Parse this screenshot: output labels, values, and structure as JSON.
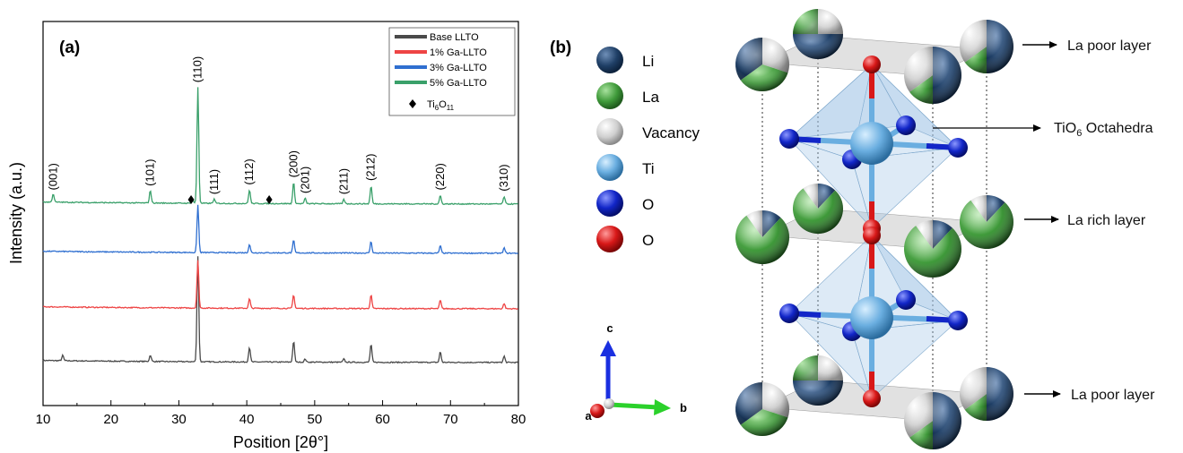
{
  "chart_data": {
    "type": "line",
    "panel_label": "(a)",
    "xlabel": "Position [2θ°]",
    "ylabel": "Intensity (a.u.)",
    "xlim": [
      10,
      80
    ],
    "xticks": [
      10,
      20,
      30,
      40,
      50,
      60,
      70,
      80
    ],
    "legend": {
      "placement": "top-right",
      "marker_label_main": "Ti",
      "marker_label_sub1": "6",
      "marker_label_mid": "O",
      "marker_label_sub2": "11"
    },
    "series": [
      {
        "name": "Base LLTO",
        "color": "#4a4a4a",
        "offset": 0,
        "peaks": [
          [
            12.9,
            0.05
          ],
          [
            25.8,
            0.06
          ],
          [
            32.8,
            1.0
          ],
          [
            40.4,
            0.14
          ],
          [
            46.9,
            0.2
          ],
          [
            48.6,
            0.03
          ],
          [
            54.3,
            0.03
          ],
          [
            58.3,
            0.17
          ],
          [
            68.5,
            0.1
          ],
          [
            77.9,
            0.06
          ]
        ]
      },
      {
        "name": "1% Ga-LLTO",
        "color": "#ee4444",
        "offset": 1,
        "peaks": [
          [
            32.8,
            0.45
          ],
          [
            40.4,
            0.09
          ],
          [
            46.9,
            0.13
          ],
          [
            58.3,
            0.13
          ],
          [
            68.5,
            0.08
          ],
          [
            77.9,
            0.05
          ]
        ]
      },
      {
        "name": "3% Ga-LLTO",
        "color": "#2f6fd0",
        "offset": 2,
        "peaks": [
          [
            32.8,
            0.45
          ],
          [
            40.4,
            0.08
          ],
          [
            46.9,
            0.12
          ],
          [
            58.3,
            0.11
          ],
          [
            68.5,
            0.07
          ],
          [
            77.9,
            0.05
          ]
        ]
      },
      {
        "name": "5% Ga-LLTO",
        "color": "#3aa06a",
        "offset": 3,
        "peaks": [
          [
            11.5,
            0.08
          ],
          [
            25.8,
            0.12
          ],
          [
            32.0,
            0.04
          ],
          [
            32.8,
            1.1
          ],
          [
            35.2,
            0.04
          ],
          [
            40.4,
            0.13
          ],
          [
            46.9,
            0.2
          ],
          [
            48.6,
            0.05
          ],
          [
            54.3,
            0.04
          ],
          [
            58.3,
            0.17
          ],
          [
            68.5,
            0.08
          ],
          [
            77.9,
            0.07
          ]
        ]
      }
    ],
    "peak_labels": [
      {
        "text": "(001)",
        "x": 11.5
      },
      {
        "text": "(101)",
        "x": 25.8
      },
      {
        "text": "(110)",
        "x": 32.8
      },
      {
        "text": "(111)",
        "x": 35.2
      },
      {
        "text": "(112)",
        "x": 40.4
      },
      {
        "text": "(200)",
        "x": 46.9
      },
      {
        "text": "(201)",
        "x": 48.6
      },
      {
        "text": "(211)",
        "x": 54.3
      },
      {
        "text": "(212)",
        "x": 58.3
      },
      {
        "text": "(220)",
        "x": 68.5
      },
      {
        "text": "(310)",
        "x": 77.9
      }
    ],
    "impurity_markers": [
      31.8,
      43.3
    ]
  },
  "structure": {
    "panel_label": "(b)",
    "legend": [
      {
        "label": "Li",
        "color": "#1f3f66"
      },
      {
        "label": "La",
        "color": "#3f9a3a"
      },
      {
        "label": "Vacancy",
        "color": "#cfcfcf"
      },
      {
        "label": "Ti",
        "color": "#6aaee0"
      },
      {
        "label": "O",
        "color": "#1226c8"
      },
      {
        "label": "O",
        "color": "#d81818"
      }
    ],
    "axes": {
      "c": "c",
      "a": "a",
      "b": "b"
    },
    "annotations": {
      "la_poor_top": "La poor layer",
      "octahedra_main": "TiO",
      "octahedra_sub": "6",
      "octahedra_rest": " Octahedra",
      "la_rich": "La rich layer",
      "la_poor_bottom": "La poor layer"
    }
  }
}
